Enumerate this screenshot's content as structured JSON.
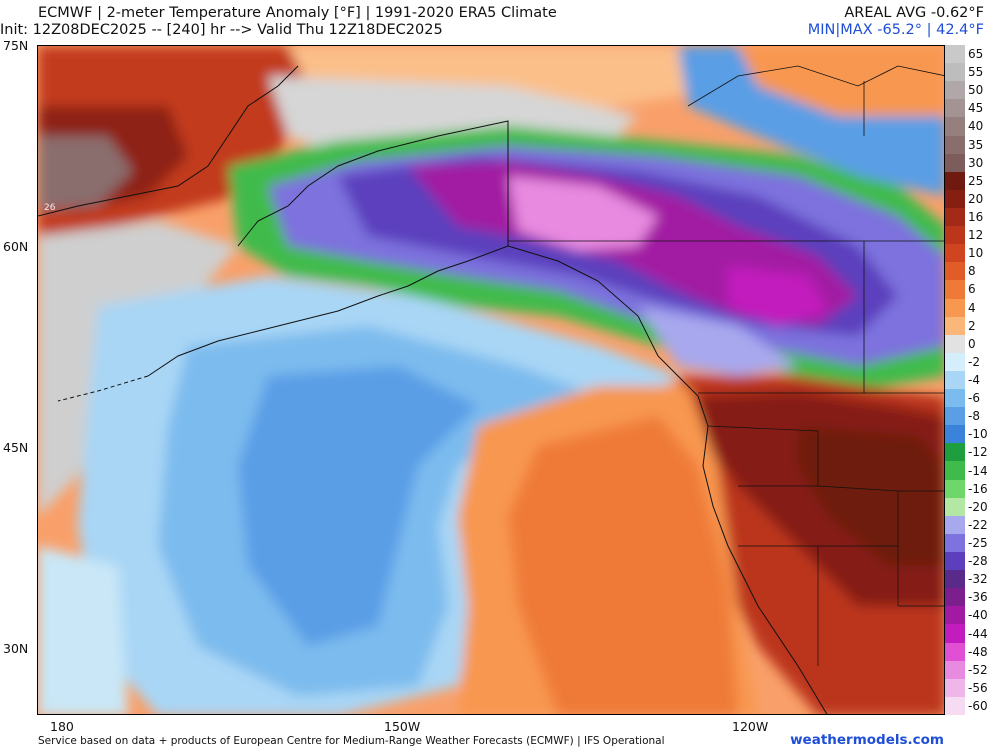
{
  "header": {
    "title": "ECMWF | 2-meter Temperature Anomaly [°F] | 1991-2020 ERA5 Climate",
    "init_line": "Init: 12Z08DEC2025 -- [240] hr --> Valid Thu 12Z18DEC2025",
    "areal_avg": "AREAL AVG -0.62°F",
    "minmax": "MIN|MAX -65.2° | 42.4°F"
  },
  "map": {
    "lat_labels": [
      "75N",
      "60N",
      "45N",
      "30N"
    ],
    "lon_labels": [
      "180",
      "150W",
      "120W"
    ],
    "point_label": "26"
  },
  "legend": {
    "labels": [
      "65",
      "55",
      "50",
      "45",
      "40",
      "35",
      "30",
      "25",
      "20",
      "16",
      "12",
      "10",
      "8",
      "6",
      "4",
      "2",
      "0",
      "-2",
      "-4",
      "-6",
      "-8",
      "-10",
      "-12",
      "-14",
      "-16",
      "-20",
      "-22",
      "-25",
      "-28",
      "-32",
      "-36",
      "-40",
      "-44",
      "-48",
      "-52",
      "-56",
      "-60"
    ],
    "colors": [
      "#c9c9c9",
      "#bdbdbd",
      "#b0a8a8",
      "#a39393",
      "#967f7f",
      "#8a6d6d",
      "#7d5c5c",
      "#6e1a10",
      "#861f12",
      "#a22a16",
      "#bb361b",
      "#d0441f",
      "#e25c27",
      "#ef7a38",
      "#f8974f",
      "#fbb779",
      "#e2e2e2",
      "#d5eefb",
      "#a9d6f5",
      "#7cbbee",
      "#5a9ee6",
      "#3b82db",
      "#1f9e3f",
      "#3fbb4b",
      "#6fd66a",
      "#b3e8a4",
      "#a8a8ee",
      "#7d72de",
      "#5b3fbd",
      "#5a2a8a",
      "#7d1e8f",
      "#a21aa3",
      "#c31cbe",
      "#e04fd4",
      "#e88ae0",
      "#efb6ea",
      "#f5dcf3"
    ]
  },
  "footer": {
    "credit": "Service based on data + products of European Centre for Medium-Range Weather Forecasts (ECMWF) | IFS Operational",
    "brand": "weathermodels.com"
  }
}
